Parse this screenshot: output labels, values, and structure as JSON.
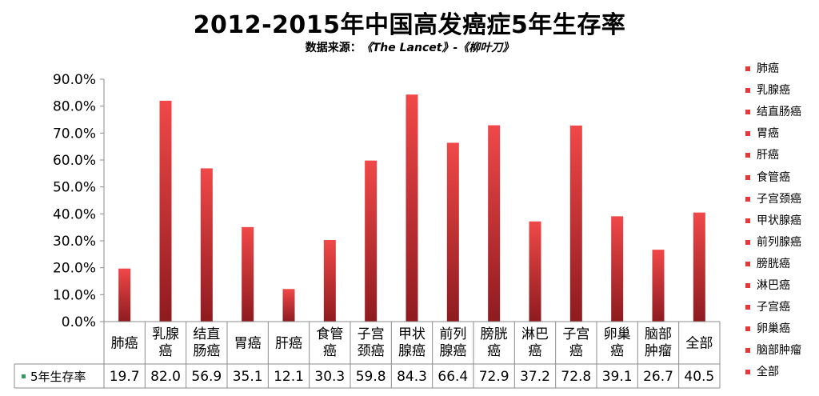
{
  "chart_data": {
    "type": "bar",
    "title": "2012-2015年中国高发癌症5年生存率",
    "subtitle_prefix": "数据来源：",
    "subtitle_source": "《The Lancet》-《柳叶刀》",
    "categories": [
      [
        "肺癌"
      ],
      [
        "乳腺",
        "癌"
      ],
      [
        "结直",
        "肠癌"
      ],
      [
        "胃癌"
      ],
      [
        "肝癌"
      ],
      [
        "食管",
        "癌"
      ],
      [
        "子宫",
        "颈癌"
      ],
      [
        "甲状",
        "腺癌"
      ],
      [
        "前列",
        "腺癌"
      ],
      [
        "膀胱",
        "癌"
      ],
      [
        "淋巴",
        "癌"
      ],
      [
        "子宫",
        "癌"
      ],
      [
        "卵巢",
        "癌"
      ],
      [
        "脑部",
        "肿瘤"
      ],
      [
        "全部"
      ]
    ],
    "series": [
      {
        "name": "5年生存率",
        "values": [
          19.7,
          82.0,
          56.9,
          35.1,
          12.1,
          30.3,
          59.8,
          84.3,
          66.4,
          72.9,
          37.2,
          72.8,
          39.1,
          26.7,
          40.5
        ]
      }
    ],
    "y_ticks": [
      "0.0%",
      "10.0%",
      "20.0%",
      "30.0%",
      "40.0%",
      "50.0%",
      "60.0%",
      "70.0%",
      "80.0%",
      "90.0%"
    ],
    "ylim": [
      0,
      90
    ],
    "legend_entries": [
      "肺癌",
      "乳腺癌",
      "结直肠癌",
      "胃癌",
      "肝癌",
      "食管癌",
      "子宫颈癌",
      "甲状腺癌",
      "前列腺癌",
      "膀胱癌",
      "淋巴癌",
      "子宫癌",
      "卵巢癌",
      "脑部肿瘤",
      "全部"
    ],
    "legend_position": "right",
    "data_table": true,
    "grid": false,
    "colors": {
      "bar_top": "#f04848",
      "bar_bottom": "#8e1b1f",
      "legend": "#e23a3a",
      "series_swatch": "#2e9e5a"
    }
  }
}
